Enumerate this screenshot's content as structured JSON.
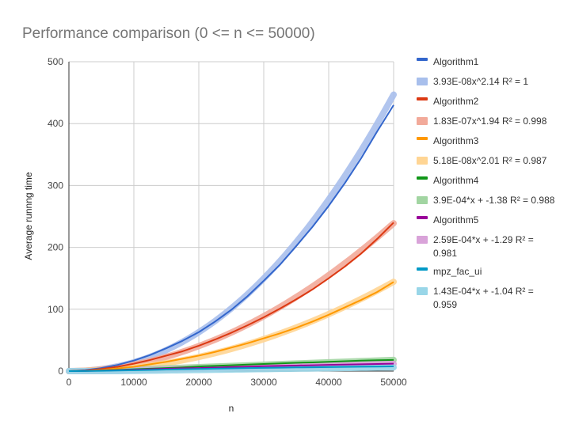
{
  "chart_data": {
    "type": "line",
    "title": "Performance comparison (0 <= n <= 50000)",
    "xlabel": "n",
    "ylabel": "Average runnng time",
    "xlim": [
      0,
      50000
    ],
    "ylim": [
      0,
      500
    ],
    "x_ticks": [
      "0",
      "10000",
      "20000",
      "30000",
      "40000",
      "50000"
    ],
    "y_ticks": [
      "0",
      "100",
      "200",
      "300",
      "400",
      "500"
    ],
    "grid": true,
    "legend_position": "right",
    "x": [
      0,
      2500,
      5000,
      7500,
      10000,
      12500,
      15000,
      17500,
      20000,
      22500,
      25000,
      27500,
      30000,
      32500,
      35000,
      37500,
      40000,
      42500,
      45000,
      47500,
      50000
    ],
    "series": [
      {
        "name": "Algorithm1",
        "color": "#3366cc",
        "values": [
          0,
          1.5,
          5,
          10,
          17,
          26,
          37,
          49,
          63,
          80,
          99,
          121,
          146,
          172,
          202,
          233,
          267,
          304,
          344,
          388,
          430
        ]
      },
      {
        "name": "Algorithm2",
        "color": "#dc3912",
        "values": [
          0,
          1,
          3.5,
          7,
          12,
          18,
          25,
          32,
          41,
          51,
          62,
          74,
          87,
          101,
          116,
          132,
          150,
          169,
          190,
          214,
          240
        ]
      },
      {
        "name": "Algorithm3",
        "color": "#ff9900",
        "values": [
          0,
          0.5,
          2,
          4.5,
          7,
          11,
          15,
          20,
          25,
          31,
          38,
          45,
          53,
          61,
          70,
          80,
          91,
          103,
          115,
          128,
          144
        ]
      },
      {
        "name": "Algorithm4",
        "color": "#109618",
        "values": [
          0,
          0.5,
          1,
          2,
          3,
          4,
          5,
          6,
          7.5,
          8.5,
          9.5,
          10.5,
          11.5,
          12.5,
          13.5,
          14,
          15,
          16,
          17,
          17.5,
          18
        ]
      },
      {
        "name": "Algorithm5",
        "color": "#990099",
        "values": [
          0,
          0.3,
          0.8,
          1.5,
          2.2,
          3,
          3.8,
          4.5,
          5,
          5.8,
          6.5,
          7.2,
          8,
          8.5,
          9,
          9.5,
          10,
          10.5,
          11,
          11.5,
          12
        ]
      },
      {
        "name": "mpz_fac_ui",
        "color": "#0099c6",
        "values": [
          0,
          0.2,
          0.5,
          1,
          1.5,
          2,
          2.5,
          3,
          3.5,
          4,
          4.5,
          5,
          5.3,
          5.6,
          6,
          6.3,
          6.6,
          6.9,
          7.2,
          7.4,
          7.6
        ]
      }
    ],
    "trendlines": [
      {
        "name": "3.93E-08x^2.14 R² = 1",
        "color": "#a8bfec",
        "kind": "power",
        "a": 3.93e-08,
        "b": 2.14,
        "c": 0
      },
      {
        "name": "1.83E-07x^1.94 R² = 0.998",
        "color": "#f2aa9a",
        "kind": "power",
        "a": 1.83e-07,
        "b": 1.94,
        "c": 0
      },
      {
        "name": "5.18E-08x^2.01 R² = 0.987",
        "color": "#ffd594",
        "kind": "power",
        "a": 5.18e-08,
        "b": 2.01,
        "c": 0
      },
      {
        "name": "3.9E-04*x + -1.38 R² = 0.988",
        "color": "#a2d5a2",
        "kind": "linear",
        "a": 0.00039,
        "b": 1,
        "c": -1.38
      },
      {
        "name": "2.59E-04*x + -1.29 R² = 0.981",
        "color": "#d9a3d9",
        "kind": "linear",
        "a": 0.000259,
        "b": 1,
        "c": -1.29
      },
      {
        "name": "1.43E-04*x + -1.04 R² = 0.959",
        "color": "#99d6e8",
        "kind": "linear",
        "a": 0.000143,
        "b": 1,
        "c": -1.04
      }
    ],
    "legend_items": [
      {
        "label": "Algorithm1",
        "color": "#3366cc"
      },
      {
        "label": "3.93E-08x^2.14 R² = 1",
        "color": "#a8bfec"
      },
      {
        "label": "Algorithm2",
        "color": "#dc3912"
      },
      {
        "label": "1.83E-07x^1.94 R² = 0.998",
        "color": "#f2aa9a"
      },
      {
        "label": "Algorithm3",
        "color": "#ff9900"
      },
      {
        "label": "5.18E-08x^2.01 R² = 0.987",
        "color": "#ffd594"
      },
      {
        "label": "Algorithm4",
        "color": "#109618"
      },
      {
        "label": "3.9E-04*x + -1.38 R² = 0.988",
        "color": "#a2d5a2"
      },
      {
        "label": "Algorithm5",
        "color": "#990099"
      },
      {
        "label": "2.59E-04*x + -1.29 R² =",
        "label2": "0.981",
        "color": "#d9a3d9"
      },
      {
        "label": "mpz_fac_ui",
        "color": "#0099c6"
      },
      {
        "label": "1.43E-04*x + -1.04 R² =",
        "label2": "0.959",
        "color": "#99d6e8"
      }
    ]
  }
}
